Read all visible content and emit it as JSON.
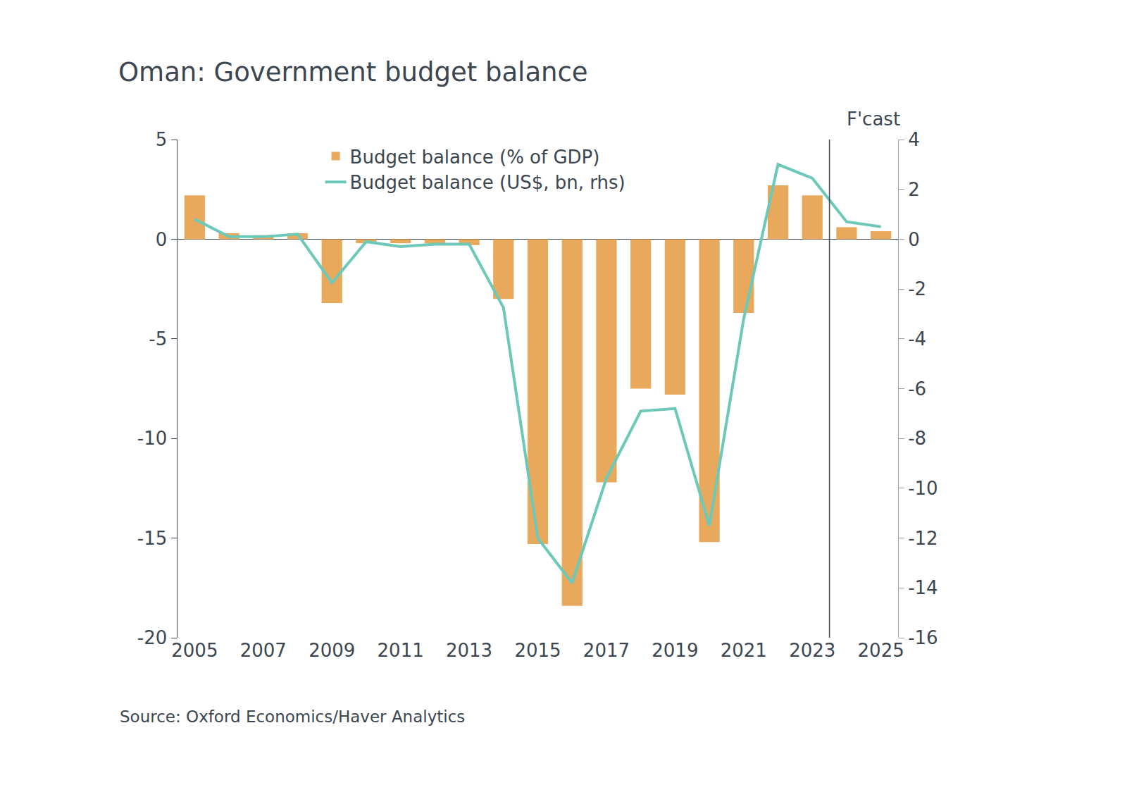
{
  "chart_data": {
    "type": "bar",
    "title": "Oman: Government budget balance",
    "source": "Source: Oxford Economics/Haver Analytics",
    "forecast_label": "F'cast",
    "forecast_x": 2023.5,
    "x": [
      2005,
      2006,
      2007,
      2008,
      2009,
      2010,
      2011,
      2012,
      2013,
      2014,
      2015,
      2016,
      2017,
      2018,
      2019,
      2020,
      2021,
      2022,
      2023,
      2024,
      2025
    ],
    "xlim": [
      2004.5,
      2025.5
    ],
    "xticks": [
      2005,
      2007,
      2009,
      2011,
      2013,
      2015,
      2017,
      2019,
      2021,
      2023,
      2025
    ],
    "ylim": [
      -20,
      5
    ],
    "yticks": [
      -20,
      -15,
      -10,
      -5,
      0,
      5
    ],
    "y2lim": [
      -16,
      4
    ],
    "y2ticks": [
      -16,
      -14,
      -12,
      -10,
      -8,
      -6,
      -4,
      -2,
      0,
      2,
      4
    ],
    "grid": false,
    "legend": "top",
    "series": [
      {
        "name": "Budget balance (% of GDP)",
        "type": "bar",
        "color": "#e8a95c",
        "values": [
          2.2,
          0.3,
          0.2,
          0.3,
          -3.2,
          -0.2,
          -0.2,
          -0.2,
          -0.3,
          -3.0,
          -15.3,
          -18.4,
          -12.2,
          -7.5,
          -7.8,
          -15.2,
          -3.7,
          2.7,
          2.2,
          0.6,
          0.4
        ]
      },
      {
        "name": "Budget balance (US$, bn, rhs)",
        "type": "line",
        "axis": "y2",
        "color": "#6cc9b9",
        "values": [
          0.8,
          0.1,
          0.1,
          0.2,
          -1.75,
          -0.1,
          -0.3,
          -0.2,
          -0.2,
          -2.75,
          -12.0,
          -13.8,
          -9.6,
          -6.9,
          -6.8,
          -11.5,
          -3.2,
          3.0,
          2.45,
          0.7,
          0.5
        ]
      }
    ]
  }
}
